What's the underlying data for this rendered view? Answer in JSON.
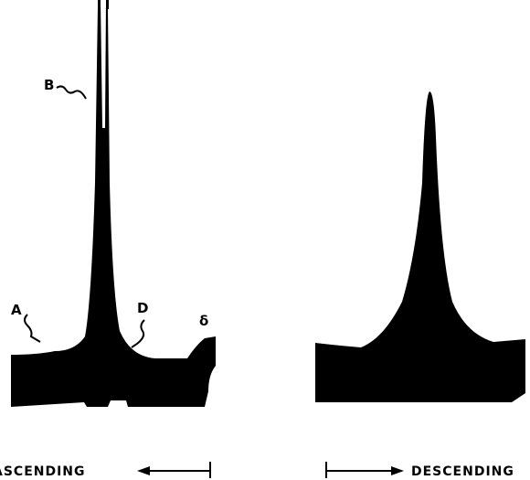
{
  "labels": {
    "a": "A",
    "b": "B",
    "d": "D",
    "delta": "δ"
  },
  "captions": {
    "ascending": "ASCENDING",
    "descending": "DESCENDING"
  }
}
